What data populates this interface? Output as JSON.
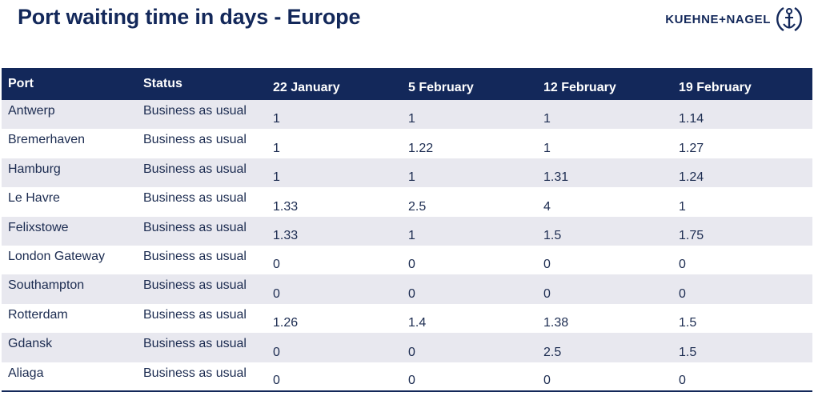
{
  "title": "Port waiting time in days - Europe",
  "logo": {
    "text": "KUEHNE+NAGEL",
    "icon": "anchor-icon",
    "brand_color": "#13285a"
  },
  "table": {
    "headers": [
      "Port",
      "Status",
      "22 January",
      "5 February",
      "12 February",
      "19 February"
    ],
    "rows": [
      [
        "Antwerp",
        "Business as usual",
        "1",
        "1",
        "1",
        "1.14"
      ],
      [
        "Bremerhaven",
        "Business as usual",
        "1",
        "1.22",
        "1",
        "1.27"
      ],
      [
        "Hamburg",
        "Business as usual",
        "1",
        "1",
        "1.31",
        "1.24"
      ],
      [
        "Le Havre",
        "Business as usual",
        "1.33",
        "2.5",
        "4",
        "1"
      ],
      [
        "Felixstowe",
        "Business as usual",
        "1.33",
        "1",
        "1.5",
        "1.75"
      ],
      [
        "London Gateway",
        "Business as usual",
        "0",
        "0",
        "0",
        "0"
      ],
      [
        "Southampton",
        "Business as usual",
        "0",
        "0",
        "0",
        "0"
      ],
      [
        "Rotterdam",
        "Business as usual",
        "1.26",
        "1.4",
        "1.38",
        "1.5"
      ],
      [
        "Gdansk",
        "Business as usual",
        "0",
        "0",
        "2.5",
        "1.5"
      ],
      [
        "Aliaga",
        "Business as usual",
        "0",
        "0",
        "0",
        "0"
      ]
    ]
  },
  "colors": {
    "header_bg": "#13285a",
    "row_shade": "#e8e8ef",
    "text": "#1b2b50"
  }
}
